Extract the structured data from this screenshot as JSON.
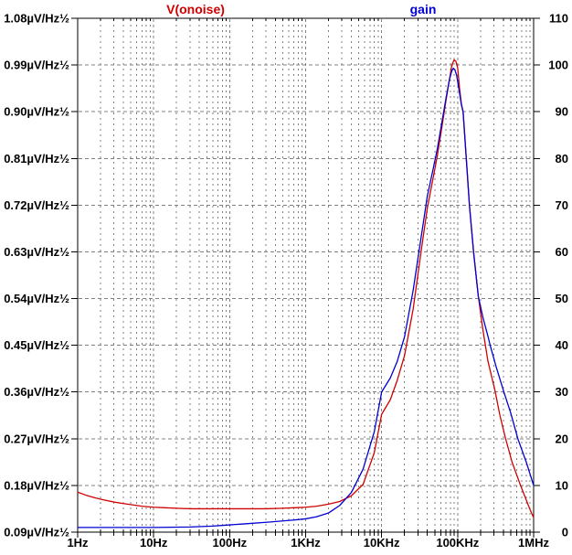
{
  "window": {
    "background": "#ffffff"
  },
  "chart_data": {
    "type": "line",
    "title": "",
    "x_axis": {
      "scale": "log",
      "min": 1,
      "max": 1000000,
      "unit": "Hz",
      "tick_labels": [
        "1Hz",
        "10Hz",
        "100Hz",
        "1KHz",
        "10KHz",
        "100KHz",
        "1MHz"
      ],
      "tick_values": [
        1,
        10,
        100,
        1000,
        10000,
        100000,
        1000000
      ]
    },
    "left_axis": {
      "min": 0.09,
      "max": 1.08,
      "step": 0.09,
      "unit": "µV/Hz½",
      "labels": [
        "1.08µV/Hz½",
        "0.99µV/Hz½",
        "0.90µV/Hz½",
        "0.81µV/Hz½",
        "0.72µV/Hz½",
        "0.63µV/Hz½",
        "0.54µV/Hz½",
        "0.45µV/Hz½",
        "0.36µV/Hz½",
        "0.27µV/Hz½",
        "0.18µV/Hz½",
        "0.09µV/Hz½"
      ]
    },
    "right_axis": {
      "min": 0,
      "max": 110,
      "step": 10,
      "labels": [
        "110",
        "100",
        "90",
        "80",
        "70",
        "60",
        "50",
        "40",
        "30",
        "20",
        "10",
        "0"
      ]
    },
    "grid": {
      "on": true,
      "color": "#808080",
      "border_color": "#000000"
    },
    "legend_position": "top",
    "series": [
      {
        "id": "vonoise",
        "name": "V(onoise)",
        "axis": "left",
        "color": "#cf0000",
        "points": [
          [
            1,
            0.167
          ],
          [
            1.3,
            0.161
          ],
          [
            1.7,
            0.156
          ],
          [
            2.2,
            0.152
          ],
          [
            3,
            0.148
          ],
          [
            4,
            0.145
          ],
          [
            5,
            0.143
          ],
          [
            7,
            0.14
          ],
          [
            10,
            0.138
          ],
          [
            14,
            0.137
          ],
          [
            20,
            0.136
          ],
          [
            30,
            0.135
          ],
          [
            50,
            0.135
          ],
          [
            100,
            0.135
          ],
          [
            200,
            0.135
          ],
          [
            300,
            0.135
          ],
          [
            500,
            0.136
          ],
          [
            700,
            0.137
          ],
          [
            1000,
            0.138
          ],
          [
            1400,
            0.14
          ],
          [
            2000,
            0.144
          ],
          [
            2800,
            0.149
          ],
          [
            4000,
            0.16
          ],
          [
            5700,
            0.182
          ],
          [
            8000,
            0.243
          ],
          [
            10000,
            0.317
          ],
          [
            13000,
            0.345
          ],
          [
            16000,
            0.382
          ],
          [
            20000,
            0.43
          ],
          [
            26000,
            0.52
          ],
          [
            33000,
            0.63
          ],
          [
            40000,
            0.715
          ],
          [
            48000,
            0.775
          ],
          [
            54000,
            0.815
          ],
          [
            62000,
            0.87
          ],
          [
            70000,
            0.92
          ],
          [
            78000,
            0.962
          ],
          [
            84000,
            0.99
          ],
          [
            90000,
            1.0
          ],
          [
            95000,
            0.997
          ],
          [
            100000,
            0.985
          ],
          [
            106000,
            0.945
          ],
          [
            112000,
            0.915
          ],
          [
            118000,
            0.9
          ],
          [
            130000,
            0.81
          ],
          [
            143000,
            0.72
          ],
          [
            162000,
            0.63
          ],
          [
            187000,
            0.545
          ],
          [
            215000,
            0.48
          ],
          [
            250000,
            0.42
          ],
          [
            310000,
            0.363
          ],
          [
            360000,
            0.315
          ],
          [
            423000,
            0.273
          ],
          [
            520000,
            0.225
          ],
          [
            665000,
            0.182
          ],
          [
            800000,
            0.152
          ],
          [
            900000,
            0.133
          ],
          [
            1000000,
            0.118
          ]
        ]
      },
      {
        "id": "gain",
        "name": "gain",
        "axis": "right",
        "color": "#0000d2",
        "points": [
          [
            1,
            1.0
          ],
          [
            3,
            1.0
          ],
          [
            10,
            1.0
          ],
          [
            30,
            1.1
          ],
          [
            60,
            1.3
          ],
          [
            100,
            1.55
          ],
          [
            150,
            1.75
          ],
          [
            200,
            1.9
          ],
          [
            300,
            2.1
          ],
          [
            500,
            2.4
          ],
          [
            700,
            2.6
          ],
          [
            1000,
            2.85
          ],
          [
            1400,
            3.3
          ],
          [
            2000,
            4.1
          ],
          [
            2800,
            5.7
          ],
          [
            4000,
            8.5
          ],
          [
            5700,
            13.5
          ],
          [
            8000,
            21.5
          ],
          [
            10000,
            30
          ],
          [
            13000,
            33
          ],
          [
            16000,
            36.5
          ],
          [
            20000,
            41.8
          ],
          [
            26000,
            51.8
          ],
          [
            33000,
            63
          ],
          [
            40000,
            72
          ],
          [
            48000,
            78
          ],
          [
            54000,
            82
          ],
          [
            62000,
            87.7
          ],
          [
            70000,
            92.7
          ],
          [
            78000,
            96.9
          ],
          [
            84000,
            98.8
          ],
          [
            88000,
            99.3
          ],
          [
            92000,
            99
          ],
          [
            97000,
            97.8
          ],
          [
            100000,
            96.5
          ],
          [
            106000,
            94
          ],
          [
            112000,
            91.5
          ],
          [
            118000,
            90
          ],
          [
            130000,
            80
          ],
          [
            143000,
            70
          ],
          [
            162000,
            60
          ],
          [
            187000,
            50.5
          ],
          [
            215000,
            46
          ],
          [
            250000,
            42
          ],
          [
            268000,
            40
          ],
          [
            320000,
            35.5
          ],
          [
            406000,
            30
          ],
          [
            500000,
            25.5
          ],
          [
            620000,
            20
          ],
          [
            800000,
            15
          ],
          [
            1000000,
            10
          ]
        ]
      }
    ]
  }
}
